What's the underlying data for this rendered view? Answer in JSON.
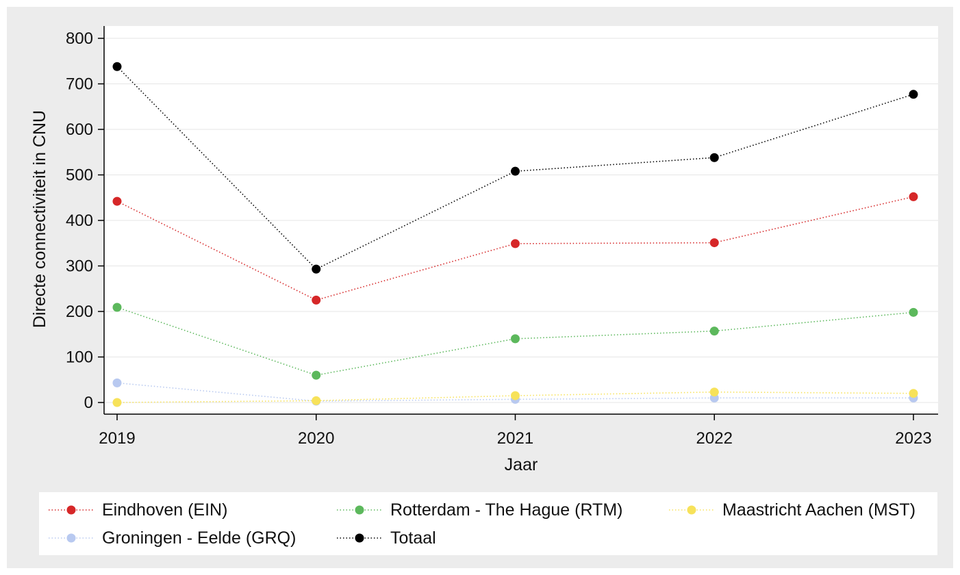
{
  "chart_data": {
    "type": "line",
    "title": "",
    "xlabel": "Jaar",
    "ylabel": "Directe connectiviteit in CNU",
    "categories": [
      "2019",
      "2020",
      "2021",
      "2022",
      "2023"
    ],
    "ylim": [
      0,
      800
    ],
    "yticks": [
      "0",
      "100",
      "200",
      "300",
      "400",
      "500",
      "600",
      "700",
      "800"
    ],
    "grid": true,
    "legend_position": "bottom",
    "line_style": "dotted",
    "series": [
      {
        "name": "Eindhoven (EIN)",
        "color": "#d62728",
        "values": [
          442,
          225,
          349,
          351,
          452
        ]
      },
      {
        "name": "Rotterdam - The Hague (RTM)",
        "color": "#5cb85c",
        "values": [
          209,
          60,
          140,
          157,
          198
        ]
      },
      {
        "name": "Maastricht Aachen (MST)",
        "color": "#f7e25a",
        "values": [
          0,
          4,
          15,
          23,
          20
        ]
      },
      {
        "name": "Groningen - Eelde (GRQ)",
        "color": "#b8c9f0",
        "values": [
          43,
          3,
          7,
          10,
          10
        ]
      },
      {
        "name": "Totaal",
        "color": "#000000",
        "values": [
          738,
          293,
          508,
          538,
          677
        ]
      }
    ]
  }
}
